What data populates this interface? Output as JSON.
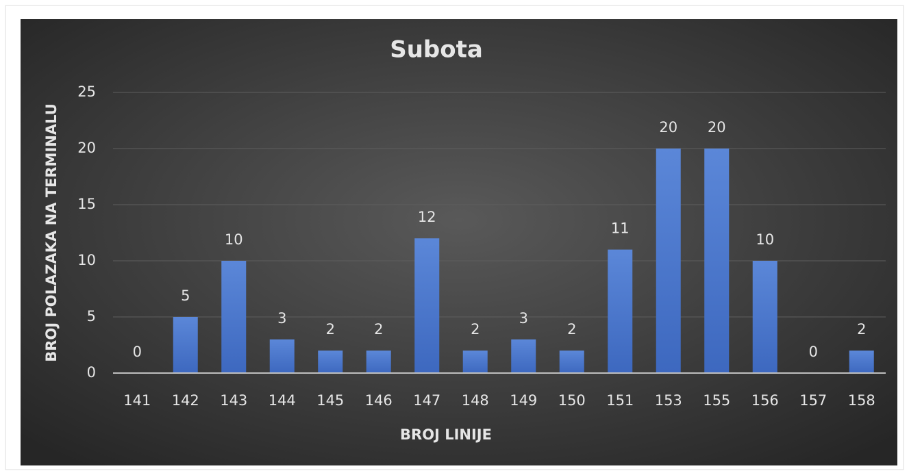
{
  "chart_data": {
    "type": "bar",
    "title": "Subota",
    "x_label": "BROJ LINIJE",
    "y_label": "BROJ POLAZAKA NA TERMINALU",
    "categories": [
      "141",
      "142",
      "143",
      "144",
      "145",
      "146",
      "147",
      "148",
      "149",
      "150",
      "151",
      "153",
      "155",
      "156",
      "157",
      "158"
    ],
    "values": [
      0,
      5,
      10,
      3,
      2,
      2,
      12,
      2,
      3,
      2,
      11,
      20,
      20,
      10,
      0,
      2
    ],
    "color": "#4a78cf",
    "ylim": [
      0,
      25
    ],
    "yticks": [
      0,
      5,
      10,
      15,
      20,
      25
    ],
    "grid": true,
    "data_labels": true
  }
}
